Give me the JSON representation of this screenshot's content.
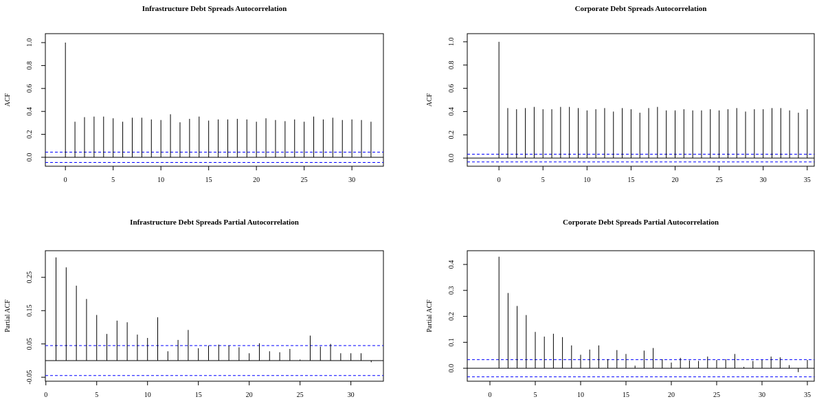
{
  "chart_data": [
    {
      "type": "stem",
      "title": "Infrastructure Debt Spreads Autocorrelation",
      "ylabel": "ACF",
      "color": "#000000",
      "band_color": "#0000ff",
      "x": [
        0,
        1,
        2,
        3,
        4,
        5,
        6,
        7,
        8,
        9,
        10,
        11,
        12,
        13,
        14,
        15,
        16,
        17,
        18,
        19,
        20,
        21,
        22,
        23,
        24,
        25,
        26,
        27,
        28,
        29,
        30,
        31,
        32
      ],
      "values": [
        1.0,
        0.31,
        0.35,
        0.355,
        0.355,
        0.34,
        0.31,
        0.345,
        0.345,
        0.33,
        0.325,
        0.375,
        0.305,
        0.335,
        0.355,
        0.32,
        0.33,
        0.33,
        0.335,
        0.33,
        0.31,
        0.34,
        0.325,
        0.315,
        0.33,
        0.31,
        0.355,
        0.33,
        0.345,
        0.325,
        0.33,
        0.325,
        0.31
      ],
      "confidence_band": [
        -0.045,
        0.045
      ],
      "xlim": [
        -2.1,
        33.3
      ],
      "xticks": [
        0,
        5,
        10,
        15,
        20,
        25,
        30
      ],
      "ylim": [
        -0.078,
        1.078
      ],
      "yticks": [
        {
          "value": 0,
          "label": "0.0"
        },
        0.2,
        0.4,
        0.6,
        0.8,
        {
          "value": 1,
          "label": "1.0"
        }
      ]
    },
    {
      "type": "stem",
      "title": "Corporate Debt Spreads Autocorrelation",
      "ylabel": "ACF",
      "color": "#000000",
      "band_color": "#0000ff",
      "x": [
        0,
        1,
        2,
        3,
        4,
        5,
        6,
        7,
        8,
        9,
        10,
        11,
        12,
        13,
        14,
        15,
        16,
        17,
        18,
        19,
        20,
        21,
        22,
        23,
        24,
        25,
        26,
        27,
        28,
        29,
        30,
        31,
        32,
        33,
        34,
        35
      ],
      "values": [
        1.0,
        0.43,
        0.42,
        0.43,
        0.44,
        0.42,
        0.42,
        0.44,
        0.44,
        0.43,
        0.41,
        0.42,
        0.43,
        0.4,
        0.43,
        0.42,
        0.39,
        0.43,
        0.44,
        0.41,
        0.41,
        0.42,
        0.41,
        0.41,
        0.42,
        0.41,
        0.42,
        0.43,
        0.4,
        0.42,
        0.42,
        0.43,
        0.43,
        0.41,
        0.39,
        0.42
      ],
      "confidence_band": [
        -0.033,
        0.033
      ],
      "xlim": [
        -3.6,
        35.8
      ],
      "xticks": [
        0,
        5,
        10,
        15,
        20,
        25,
        30,
        35
      ],
      "ylim": [
        -0.07,
        1.07
      ],
      "yticks": [
        {
          "value": 0,
          "label": "0.0"
        },
        0.2,
        0.4,
        0.6,
        0.8,
        {
          "value": 1,
          "label": "1.0"
        }
      ]
    },
    {
      "type": "stem",
      "title": "Infrastructure Debt Spreads Partial Autocorrelation",
      "ylabel": "Partial ACF",
      "color": "#000000",
      "band_color": "#0000ff",
      "x": [
        1,
        2,
        3,
        4,
        5,
        6,
        7,
        8,
        9,
        10,
        11,
        12,
        13,
        14,
        15,
        16,
        17,
        18,
        19,
        20,
        21,
        22,
        23,
        24,
        25,
        26,
        27,
        28,
        29,
        30,
        31,
        32
      ],
      "values": [
        0.31,
        0.28,
        0.225,
        0.185,
        0.137,
        0.08,
        0.12,
        0.115,
        0.078,
        0.068,
        0.13,
        0.028,
        0.062,
        0.092,
        0.037,
        0.045,
        0.048,
        0.045,
        0.04,
        0.022,
        0.052,
        0.028,
        0.025,
        0.035,
        0.003,
        0.075,
        0.042,
        0.05,
        0.022,
        0.022,
        0.022,
        -0.005
      ],
      "confidence_band": [
        -0.045,
        0.045
      ],
      "xlim": [
        -0.05,
        33.2
      ],
      "xticks": [
        0,
        5,
        10,
        15,
        20,
        25,
        30
      ],
      "ylim": [
        -0.062,
        0.33
      ],
      "yticks": [
        -0.05,
        0.05,
        0.15,
        0.25
      ]
    },
    {
      "type": "stem",
      "title": "Corporate Debt Spreads Partial Autocorrelation",
      "ylabel": "Partial ACF",
      "color": "#000000",
      "band_color": "#0000ff",
      "x": [
        1,
        2,
        3,
        4,
        5,
        6,
        7,
        8,
        9,
        10,
        11,
        12,
        13,
        14,
        15,
        16,
        17,
        18,
        19,
        20,
        21,
        22,
        23,
        24,
        25,
        26,
        27,
        28,
        29,
        30,
        31,
        32,
        33,
        34,
        35
      ],
      "values": [
        0.43,
        0.29,
        0.24,
        0.205,
        0.14,
        0.122,
        0.133,
        0.12,
        0.088,
        0.052,
        0.072,
        0.088,
        0.035,
        0.07,
        0.055,
        0.01,
        0.068,
        0.078,
        0.035,
        0.022,
        0.04,
        0.03,
        0.028,
        0.045,
        0.032,
        0.035,
        0.055,
        0.005,
        0.028,
        0.032,
        0.045,
        0.042,
        0.012,
        -0.015,
        0.032
      ],
      "confidence_band": [
        -0.033,
        0.033
      ],
      "xlim": [
        -2.5,
        35.76
      ],
      "xticks": [
        0,
        5,
        10,
        15,
        20,
        25,
        30,
        35
      ],
      "ylim": [
        -0.05,
        0.453
      ],
      "yticks": [
        {
          "value": 0,
          "label": "0.0"
        },
        0.1,
        0.2,
        0.3,
        0.4
      ]
    }
  ]
}
